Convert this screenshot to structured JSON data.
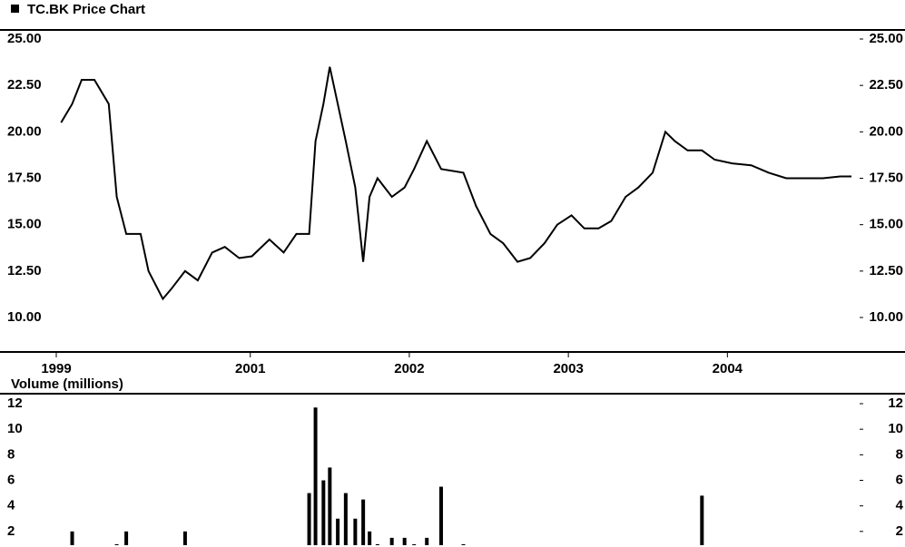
{
  "chart_data": [
    {
      "type": "line",
      "title": "TC.BK Price Chart",
      "color": "#000000",
      "x": [
        1999.81,
        1999.88,
        1999.94,
        2000.02,
        2000.11,
        2000.16,
        2000.22,
        2000.31,
        2000.36,
        2000.45,
        2000.5,
        2000.59,
        2000.67,
        2000.76,
        2000.84,
        2000.93,
        2001.01,
        2001.12,
        2001.21,
        2001.29,
        2001.37,
        2001.41,
        2001.46,
        2001.5,
        2001.55,
        2001.6,
        2001.66,
        2001.71,
        2001.75,
        2001.8,
        2001.89,
        2001.97,
        2002.03,
        2002.11,
        2002.2,
        2002.34,
        2002.42,
        2002.51,
        2002.59,
        2002.68,
        2002.76,
        2002.85,
        2002.93,
        2003.02,
        2003.1,
        2003.19,
        2003.27,
        2003.36,
        2003.44,
        2003.53,
        2003.61,
        2003.67,
        2003.75,
        2003.84,
        2003.92,
        2004.03,
        2004.15,
        2004.26,
        2004.37,
        2004.49,
        2004.6,
        2004.71,
        2004.78
      ],
      "values": [
        20.5,
        21.5,
        22.8,
        22.8,
        21.5,
        16.5,
        14.5,
        14.5,
        12.5,
        11,
        11.5,
        12.5,
        12,
        13.5,
        13.8,
        13.2,
        13.3,
        14.2,
        13.5,
        14.5,
        14.5,
        19.5,
        21.5,
        23.5,
        21.5,
        19.5,
        17,
        13,
        16.5,
        17.5,
        16.5,
        17,
        18,
        19.5,
        18,
        17.8,
        16,
        14.5,
        14,
        13,
        13.2,
        14,
        15,
        15.5,
        14.8,
        14.8,
        15.2,
        16.5,
        17,
        17.8,
        20,
        19.5,
        19,
        19,
        18.5,
        18.3,
        18.2,
        17.8,
        17.5,
        17.5,
        17.5,
        17.6,
        17.6
      ],
      "xlim": [
        1999.78,
        2004.82
      ],
      "xticks": [
        {
          "value": 1999.78,
          "label": "1999"
        },
        {
          "value": 2001,
          "label": "2001"
        },
        {
          "value": 2002,
          "label": "2002"
        },
        {
          "value": 2003,
          "label": "2003"
        },
        {
          "value": 2004,
          "label": "2004"
        }
      ],
      "ylim": [
        10,
        25
      ],
      "yticks": [
        {
          "value": 10,
          "label": "10.00"
        },
        {
          "value": 12.5,
          "label": "12.50"
        },
        {
          "value": 15,
          "label": "15.00"
        },
        {
          "value": 17.5,
          "label": "17.50"
        },
        {
          "value": 20,
          "label": "20.00"
        },
        {
          "value": 22.5,
          "label": "22.50"
        },
        {
          "value": 25,
          "label": "25.00"
        }
      ]
    },
    {
      "type": "bar",
      "title": "Volume (millions)",
      "color": "#000000",
      "x": [
        1999.81,
        1999.88,
        1999.94,
        2000.02,
        2000.11,
        2000.16,
        2000.22,
        2000.31,
        2000.36,
        2000.45,
        2000.5,
        2000.59,
        2000.67,
        2000.76,
        2000.84,
        2000.93,
        2001.01,
        2001.12,
        2001.21,
        2001.29,
        2001.37,
        2001.41,
        2001.46,
        2001.5,
        2001.55,
        2001.6,
        2001.66,
        2001.71,
        2001.75,
        2001.8,
        2001.89,
        2001.97,
        2002.03,
        2002.11,
        2002.2,
        2002.34,
        2002.42,
        2002.51,
        2002.59,
        2002.68,
        2002.76,
        2002.85,
        2002.93,
        2003.02,
        2003.1,
        2003.19,
        2003.27,
        2003.36,
        2003.44,
        2003.53,
        2003.61,
        2003.67,
        2003.75,
        2003.84,
        2003.92,
        2004.03,
        2004.15,
        2004.26,
        2004.37,
        2004.49,
        2004.6,
        2004.71,
        2004.78
      ],
      "values": [
        0.5,
        2,
        0.8,
        0.6,
        0.5,
        1,
        2,
        0.8,
        0.7,
        0.6,
        0.5,
        2,
        0.6,
        0.5,
        0.6,
        0.5,
        0.7,
        0.5,
        0.5,
        0.8,
        5,
        11.7,
        6,
        7,
        3,
        5,
        3,
        4.5,
        2,
        1,
        1.5,
        1.5,
        1,
        1.5,
        5.5,
        1,
        0.5,
        0.4,
        0.4,
        0.3,
        0.3,
        0.4,
        0.3,
        0.3,
        0.3,
        0.3,
        0.3,
        0.5,
        0.6,
        0.6,
        0.8,
        0.5,
        0.5,
        4.8,
        0.4,
        0.2,
        0.1,
        0.1,
        0.1,
        0.1,
        0.1,
        0.1,
        0.1
      ],
      "xlim": [
        1999.78,
        2004.82
      ],
      "ylim": [
        0,
        12
      ],
      "yticks": [
        2,
        4,
        6,
        8,
        10,
        12
      ]
    }
  ]
}
